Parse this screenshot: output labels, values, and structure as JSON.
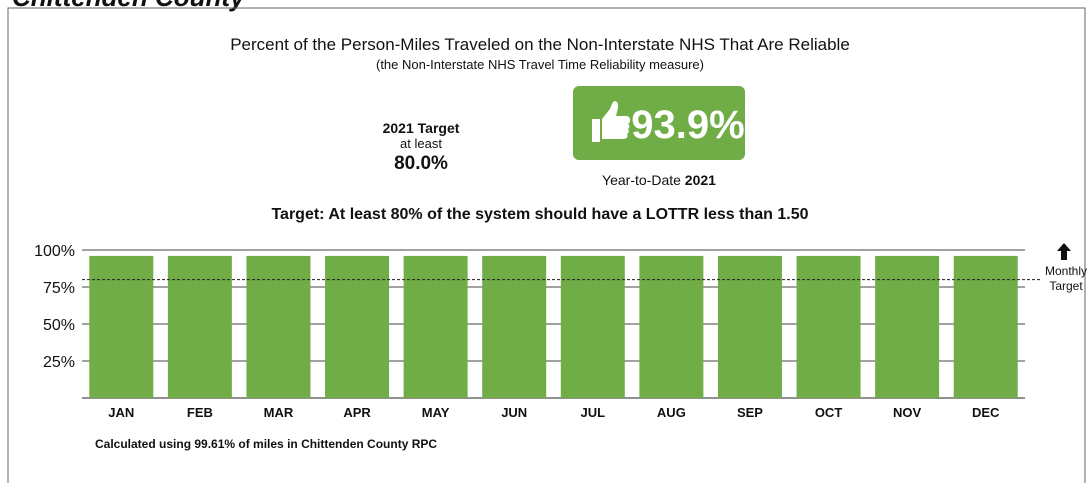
{
  "header": {
    "title": "Chittenden County"
  },
  "kpi": {
    "target_title": "2021 Target",
    "target_qualifier": "at least",
    "target_value": "80.0%",
    "ytd_value": "93.9%",
    "ytd_label": "Year-to-Date",
    "ytd_year": "2021"
  },
  "chart_data": {
    "type": "bar",
    "title": "Percent of the Person-Miles Traveled on the Non-Interstate NHS That Are Reliable",
    "subtitle": "(the Non-Interstate NHS Travel Time Reliability measure)",
    "target_text": "Target: At least 80% of the system should have a LOTTR less than 1.50",
    "categories": [
      "JAN",
      "FEB",
      "MAR",
      "APR",
      "MAY",
      "JUN",
      "JUL",
      "AUG",
      "SEP",
      "OCT",
      "NOV",
      "DEC"
    ],
    "values": [
      96,
      96,
      96,
      96,
      96,
      96,
      96,
      96,
      96,
      96,
      96,
      96
    ],
    "color": "#70ad47",
    "ylim": [
      0,
      100
    ],
    "yticks": [
      {
        "value": 25,
        "label": "25%"
      },
      {
        "value": 50,
        "label": "50%"
      },
      {
        "value": 75,
        "label": "75%"
      },
      {
        "value": 100,
        "label": "100%"
      }
    ],
    "grid": true,
    "target_line": 80,
    "target_line_label": "Monthly Target",
    "footnote": "Calculated using 99.61% of miles in Chittenden County RPC"
  }
}
